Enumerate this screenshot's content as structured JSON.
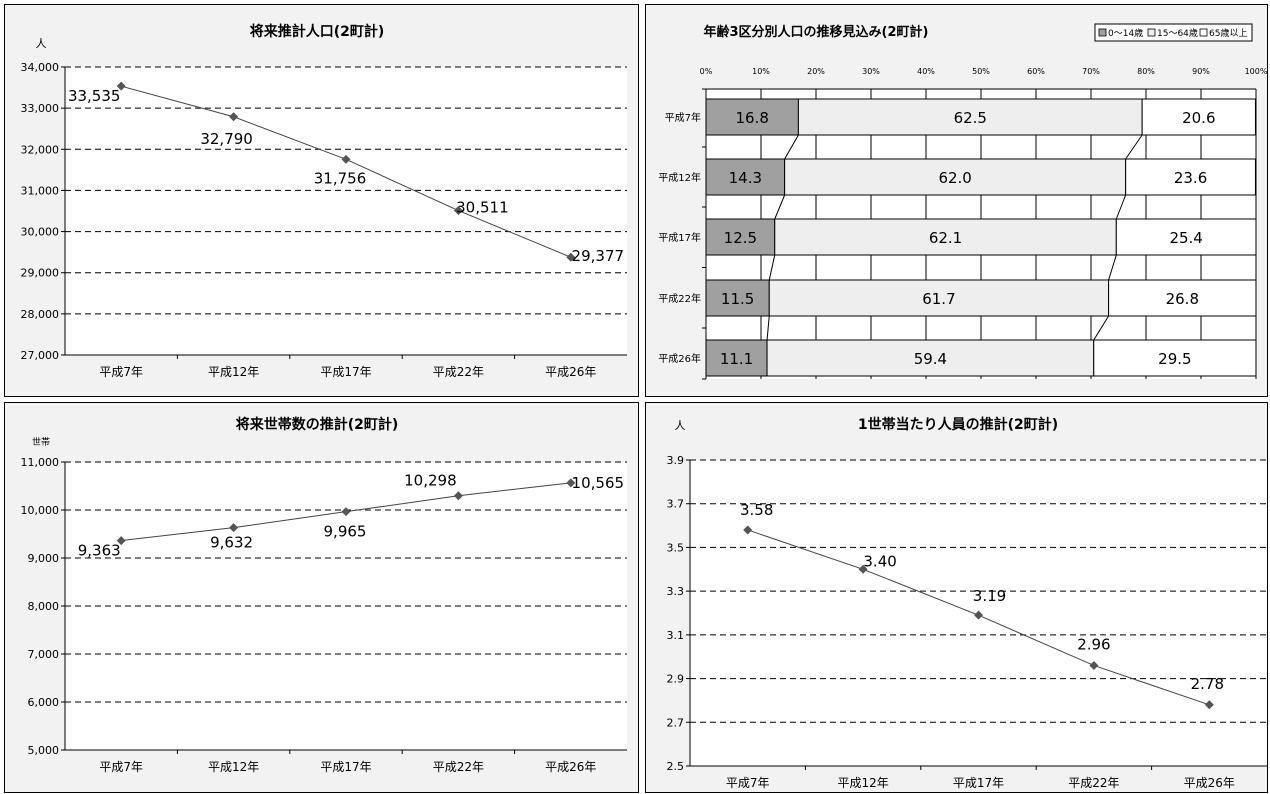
{
  "chart_data": [
    {
      "id": "population",
      "type": "line",
      "title": "将来推計人口(2町計)",
      "unit_label": "人",
      "categories": [
        "平成7年",
        "平成12年",
        "平成17年",
        "平成22年",
        "平成26年"
      ],
      "values": [
        33535,
        32790,
        31756,
        30511,
        29377
      ],
      "value_labels": [
        "33,535",
        "32,790",
        "31,756",
        "30,511",
        "29,377"
      ],
      "ylim": [
        27000,
        34000
      ],
      "yticks": [
        27000,
        28000,
        29000,
        30000,
        31000,
        32000,
        33000,
        34000
      ],
      "ytick_labels": [
        "27,000",
        "28,000",
        "29,000",
        "30,000",
        "31,000",
        "32,000",
        "33,000",
        "34,000"
      ],
      "grid": true
    },
    {
      "id": "age-composition",
      "type": "bar",
      "orientation": "horizontal",
      "stacked_percent": true,
      "title": "年齢3区分別人口の推移見込み(2町計)",
      "categories": [
        "平成7年",
        "平成12年",
        "平成17年",
        "平成22年",
        "平成26年"
      ],
      "series": [
        {
          "name": "0～14歳",
          "values": [
            16.8,
            14.3,
            12.5,
            11.5,
            11.1
          ],
          "labels": [
            "16.8",
            "14.3",
            "12.5",
            "11.5",
            "11.1"
          ],
          "color": "#a0a0a0"
        },
        {
          "name": "15～64歳",
          "values": [
            62.5,
            62.0,
            62.1,
            61.7,
            59.4
          ],
          "labels": [
            "62.5",
            "62.0",
            "62.1",
            "61.7",
            "59.4"
          ],
          "color": "#eeeeee"
        },
        {
          "name": "65歳以上",
          "values": [
            20.6,
            23.6,
            25.4,
            26.8,
            29.5
          ],
          "labels": [
            "20.6",
            "23.6",
            "25.4",
            "26.8",
            "29.5"
          ],
          "color": "#ffffff"
        }
      ],
      "xlim": [
        0,
        100
      ],
      "xticks": [
        0,
        10,
        20,
        30,
        40,
        50,
        60,
        70,
        80,
        90,
        100
      ],
      "xtick_labels": [
        "0%",
        "10%",
        "20%",
        "30%",
        "40%",
        "50%",
        "60%",
        "70%",
        "80%",
        "90%",
        "100%"
      ],
      "legend_position": "top-right",
      "grid": true
    },
    {
      "id": "households",
      "type": "line",
      "title": "将来世帯数の推計(2町計)",
      "unit_label": "世帯",
      "categories": [
        "平成7年",
        "平成12年",
        "平成17年",
        "平成22年",
        "平成26年"
      ],
      "values": [
        9363,
        9632,
        9965,
        10298,
        10565
      ],
      "value_labels": [
        "9,363",
        "9,632",
        "9,965",
        "10,298",
        "10,565"
      ],
      "ylim": [
        5000,
        11000
      ],
      "yticks": [
        5000,
        6000,
        7000,
        8000,
        9000,
        10000,
        11000
      ],
      "ytick_labels": [
        "5,000",
        "6,000",
        "7,000",
        "8,000",
        "9,000",
        "10,000",
        "11,000"
      ],
      "grid": true
    },
    {
      "id": "persons-per-household",
      "type": "line",
      "title": "1世帯当たり人員の推計(2町計)",
      "unit_label": "人",
      "categories": [
        "平成7年",
        "平成12年",
        "平成17年",
        "平成22年",
        "平成26年"
      ],
      "values": [
        3.58,
        3.4,
        3.19,
        2.96,
        2.78
      ],
      "value_labels": [
        "3.58",
        "3.40",
        "3.19",
        "2.96",
        "2.78"
      ],
      "ylim": [
        2.5,
        3.9
      ],
      "yticks": [
        2.5,
        2.7,
        2.9,
        3.1,
        3.3,
        3.5,
        3.7,
        3.9
      ],
      "ytick_labels": [
        "2.5",
        "2.7",
        "2.9",
        "3.1",
        "3.3",
        "3.5",
        "3.7",
        "3.9"
      ],
      "grid": true
    }
  ]
}
